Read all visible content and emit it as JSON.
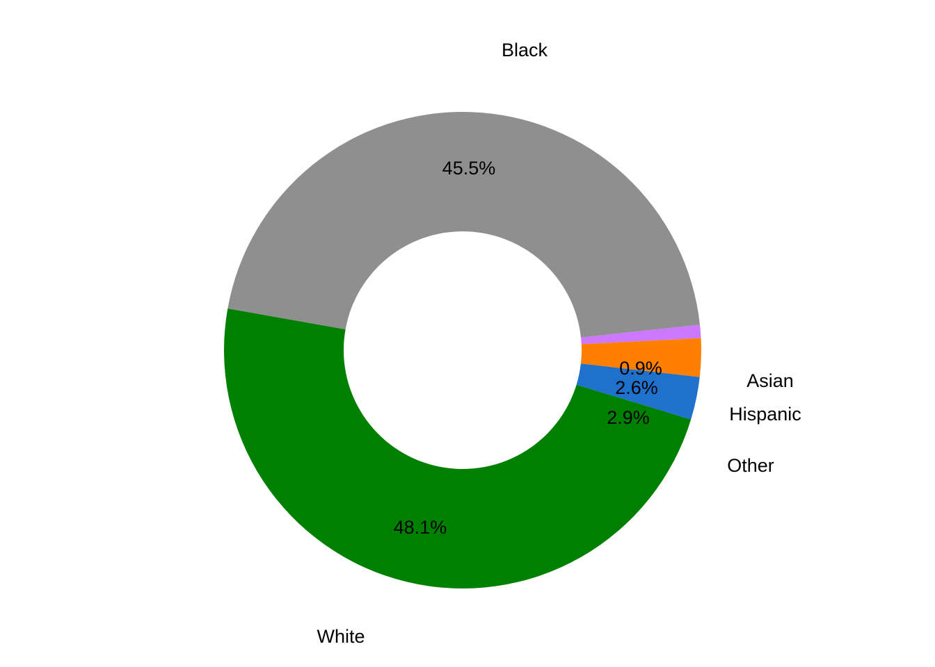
{
  "chart_data": {
    "type": "pie",
    "donut": true,
    "title": "",
    "legend": "none",
    "slices": [
      {
        "category": "Asian",
        "value": 0.9,
        "label": "0.9%",
        "color": "#CC79FF"
      },
      {
        "category": "Black",
        "value": 45.5,
        "label": "45.5%",
        "color": "#8F8F8F"
      },
      {
        "category": "White",
        "value": 48.1,
        "label": "48.1%",
        "color": "#008000"
      },
      {
        "category": "Other",
        "value": 2.9,
        "label": "2.9%",
        "color": "#1F71CC"
      },
      {
        "category": "Hispanic",
        "value": 2.6,
        "label": "2.6%",
        "color": "#FF7F00"
      }
    ]
  }
}
